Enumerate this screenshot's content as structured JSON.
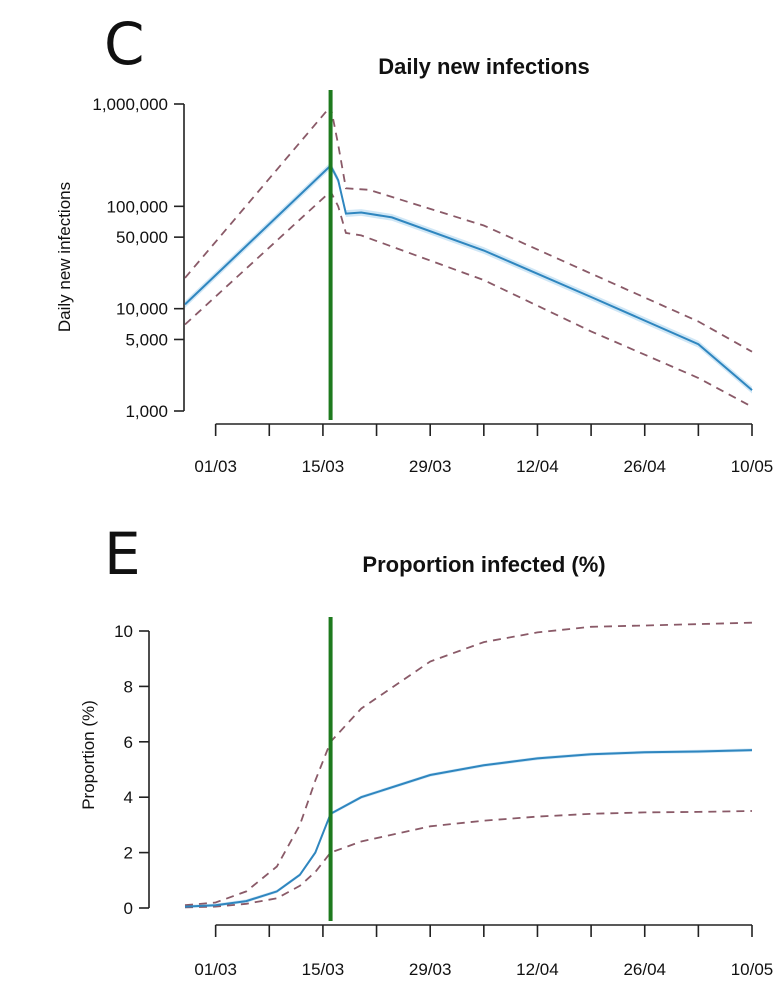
{
  "colors": {
    "median": "#2f86bf",
    "band": "#a9d4ef",
    "interval": "#8a5a68",
    "intervention_line": "#1e7a1e"
  },
  "chart_data": [
    {
      "panel": "C",
      "type": "line",
      "title": "Daily new infections",
      "xlabel": "",
      "ylabel": "Daily new infections",
      "yscale": "log",
      "ylim": [
        1000,
        1000000
      ],
      "yticks": [
        {
          "value": 1000,
          "label": "1,000"
        },
        {
          "value": 5000,
          "label": "5,000"
        },
        {
          "value": 10000,
          "label": "10,000"
        },
        {
          "value": 50000,
          "label": "50,000"
        },
        {
          "value": 100000,
          "label": "100,000"
        },
        {
          "value": 1000000,
          "label": "1,000,000"
        }
      ],
      "xlim": [
        "2020-02-26",
        "2020-05-10"
      ],
      "x_tick_labels": [
        {
          "date": "2020-03-01",
          "label": "01/03"
        },
        {
          "date": "2020-03-15",
          "label": "15/03"
        },
        {
          "date": "2020-03-29",
          "label": "29/03"
        },
        {
          "date": "2020-04-12",
          "label": "12/04"
        },
        {
          "date": "2020-04-26",
          "label": "26/04"
        },
        {
          "date": "2020-05-10",
          "label": "10/05"
        }
      ],
      "x_minor_tick_dates": [
        "2020-03-08",
        "2020-03-22",
        "2020-04-05",
        "2020-04-19",
        "2020-05-03"
      ],
      "vline_date": "2020-03-16",
      "grid": false,
      "series": [
        {
          "role": "median",
          "points": [
            [
              "2020-02-26",
              11000
            ],
            [
              "2020-03-16",
              250000
            ],
            [
              "2020-03-17",
              180000
            ],
            [
              "2020-03-18",
              85000
            ],
            [
              "2020-03-20",
              87000
            ],
            [
              "2020-03-24",
              78000
            ],
            [
              "2020-04-05",
              37000
            ],
            [
              "2020-04-19",
              13000
            ],
            [
              "2020-05-03",
              4500
            ],
            [
              "2020-05-10",
              1600
            ]
          ]
        },
        {
          "role": "upper",
          "points": [
            [
              "2020-02-26",
              20000
            ],
            [
              "2020-03-16",
              950000
            ],
            [
              "2020-03-17",
              400000
            ],
            [
              "2020-03-18",
              150000
            ],
            [
              "2020-03-21",
              145000
            ],
            [
              "2020-04-05",
              65000
            ],
            [
              "2020-04-19",
              22000
            ],
            [
              "2020-05-03",
              7500
            ],
            [
              "2020-05-10",
              3800
            ]
          ]
        },
        {
          "role": "lower",
          "points": [
            [
              "2020-02-26",
              7000
            ],
            [
              "2020-03-16",
              140000
            ],
            [
              "2020-03-17",
              100000
            ],
            [
              "2020-03-18",
              55000
            ],
            [
              "2020-03-20",
              52000
            ],
            [
              "2020-04-05",
              19000
            ],
            [
              "2020-04-19",
              6000
            ],
            [
              "2020-05-03",
              2100
            ],
            [
              "2020-05-10",
              1100
            ]
          ]
        }
      ]
    },
    {
      "panel": "E",
      "type": "line",
      "title": "Proportion infected (%)",
      "xlabel": "",
      "ylabel": "Proportion (%)",
      "yscale": "linear",
      "ylim": [
        0,
        10
      ],
      "yticks": [
        {
          "value": 0,
          "label": "0"
        },
        {
          "value": 2,
          "label": "2"
        },
        {
          "value": 4,
          "label": "4"
        },
        {
          "value": 6,
          "label": "6"
        },
        {
          "value": 8,
          "label": "8"
        },
        {
          "value": 10,
          "label": "10"
        }
      ],
      "xlim": [
        "2020-02-26",
        "2020-05-10"
      ],
      "x_tick_labels": [
        {
          "date": "2020-03-01",
          "label": "01/03"
        },
        {
          "date": "2020-03-15",
          "label": "15/03"
        },
        {
          "date": "2020-03-29",
          "label": "29/03"
        },
        {
          "date": "2020-04-12",
          "label": "12/04"
        },
        {
          "date": "2020-04-26",
          "label": "26/04"
        },
        {
          "date": "2020-05-10",
          "label": "10/05"
        }
      ],
      "x_minor_tick_dates": [
        "2020-03-08",
        "2020-03-22",
        "2020-04-05",
        "2020-04-19",
        "2020-05-03"
      ],
      "vline_date": "2020-03-16",
      "grid": false,
      "series": [
        {
          "role": "median",
          "points": [
            [
              "2020-02-26",
              0.05
            ],
            [
              "2020-03-01",
              0.1
            ],
            [
              "2020-03-05",
              0.25
            ],
            [
              "2020-03-09",
              0.6
            ],
            [
              "2020-03-12",
              1.2
            ],
            [
              "2020-03-14",
              2.0
            ],
            [
              "2020-03-16",
              3.4
            ],
            [
              "2020-03-20",
              4.0
            ],
            [
              "2020-03-29",
              4.8
            ],
            [
              "2020-04-05",
              5.15
            ],
            [
              "2020-04-12",
              5.4
            ],
            [
              "2020-04-19",
              5.55
            ],
            [
              "2020-04-26",
              5.62
            ],
            [
              "2020-05-03",
              5.65
            ],
            [
              "2020-05-10",
              5.7
            ]
          ]
        },
        {
          "role": "upper",
          "points": [
            [
              "2020-02-26",
              0.1
            ],
            [
              "2020-03-01",
              0.2
            ],
            [
              "2020-03-05",
              0.6
            ],
            [
              "2020-03-09",
              1.5
            ],
            [
              "2020-03-12",
              3.0
            ],
            [
              "2020-03-14",
              4.6
            ],
            [
              "2020-03-16",
              6.0
            ],
            [
              "2020-03-20",
              7.2
            ],
            [
              "2020-03-29",
              8.9
            ],
            [
              "2020-04-05",
              9.6
            ],
            [
              "2020-04-12",
              9.95
            ],
            [
              "2020-04-19",
              10.15
            ],
            [
              "2020-04-26",
              10.2
            ],
            [
              "2020-05-03",
              10.25
            ],
            [
              "2020-05-10",
              10.3
            ]
          ]
        },
        {
          "role": "lower",
          "points": [
            [
              "2020-02-26",
              0.02
            ],
            [
              "2020-03-01",
              0.05
            ],
            [
              "2020-03-05",
              0.15
            ],
            [
              "2020-03-09",
              0.35
            ],
            [
              "2020-03-12",
              0.8
            ],
            [
              "2020-03-14",
              1.3
            ],
            [
              "2020-03-16",
              2.0
            ],
            [
              "2020-03-20",
              2.4
            ],
            [
              "2020-03-29",
              2.95
            ],
            [
              "2020-04-05",
              3.15
            ],
            [
              "2020-04-12",
              3.3
            ],
            [
              "2020-04-19",
              3.4
            ],
            [
              "2020-04-26",
              3.45
            ],
            [
              "2020-05-03",
              3.47
            ],
            [
              "2020-05-10",
              3.5
            ]
          ]
        }
      ]
    }
  ]
}
